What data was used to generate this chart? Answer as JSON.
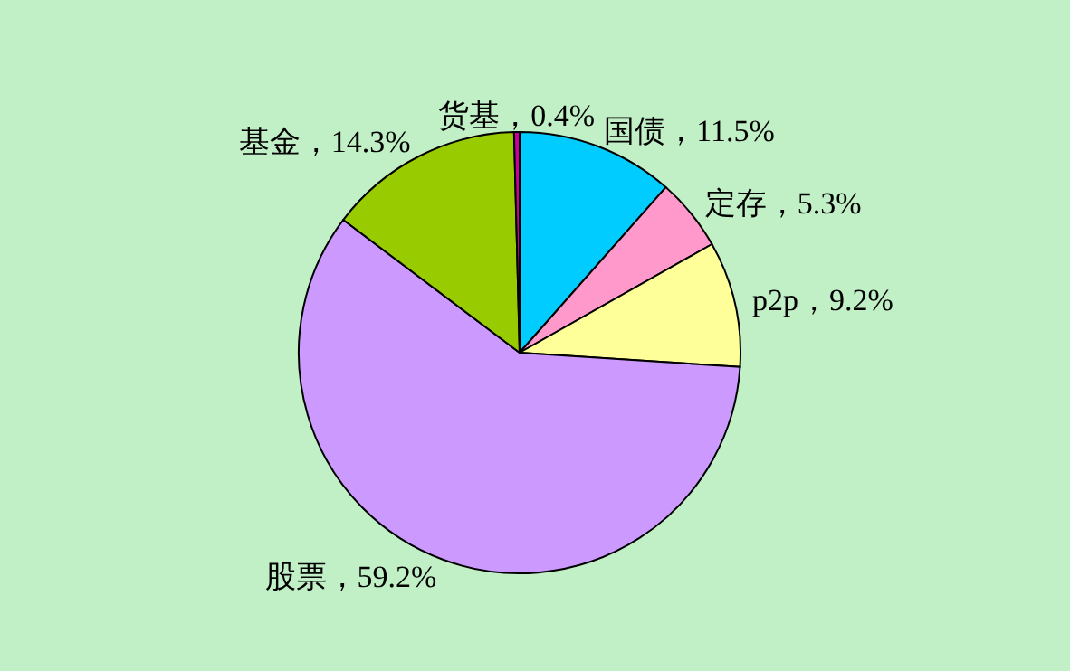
{
  "chart_data": {
    "type": "pie",
    "categories": [
      "国债",
      "定存",
      "p2p",
      "股票",
      "基金",
      "货基"
    ],
    "values": [
      11.5,
      5.3,
      9.2,
      59.2,
      14.3,
      0.4
    ],
    "colors": [
      "#00ccff",
      "#ff99cc",
      "#ffff99",
      "#cc99ff",
      "#99cc00",
      "#cc0099"
    ],
    "value_labels": [
      "11.5%",
      "5.3%",
      "9.2%",
      "59.2%",
      "14.3%",
      "0.4%"
    ]
  }
}
